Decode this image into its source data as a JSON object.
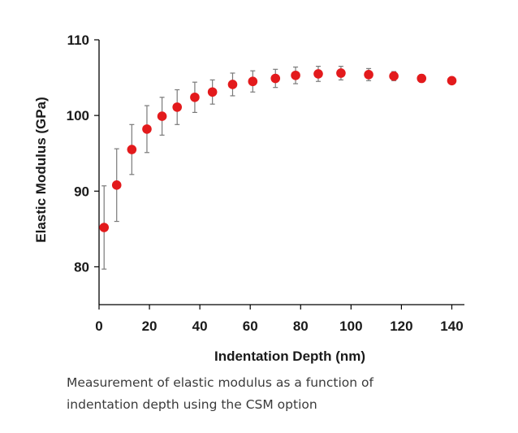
{
  "chart_data": {
    "type": "scatter",
    "xlabel": "Indentation Depth (nm)",
    "ylabel": "Elastic Modulus (GPa)",
    "xlim": [
      0,
      145
    ],
    "ylim": [
      75,
      110
    ],
    "xticks": [
      0,
      20,
      40,
      60,
      80,
      100,
      120,
      140
    ],
    "yticks": [
      80,
      90,
      100,
      110
    ],
    "grid": false,
    "marker_color": "#e31a1c",
    "errorbar_color": "#7a7a7a",
    "series": [
      {
        "name": "Elastic Modulus",
        "x": [
          2,
          7,
          13,
          19,
          25,
          31,
          38,
          45,
          53,
          61,
          70,
          78,
          87,
          96,
          107,
          117,
          128,
          140
        ],
        "y": [
          85.2,
          90.8,
          95.5,
          98.2,
          99.9,
          101.1,
          102.4,
          103.1,
          104.1,
          104.5,
          104.9,
          105.3,
          105.5,
          105.6,
          105.4,
          105.2,
          104.9,
          104.6
        ],
        "error": [
          5.5,
          4.8,
          3.3,
          3.1,
          2.5,
          2.3,
          2.0,
          1.6,
          1.5,
          1.4,
          1.2,
          1.1,
          1.0,
          0.9,
          0.8,
          0.6,
          0.5,
          0.4
        ]
      }
    ]
  },
  "caption": {
    "line1": "Measurement of elastic modulus as a function of",
    "line2": "indentation depth using the CSM option"
  }
}
